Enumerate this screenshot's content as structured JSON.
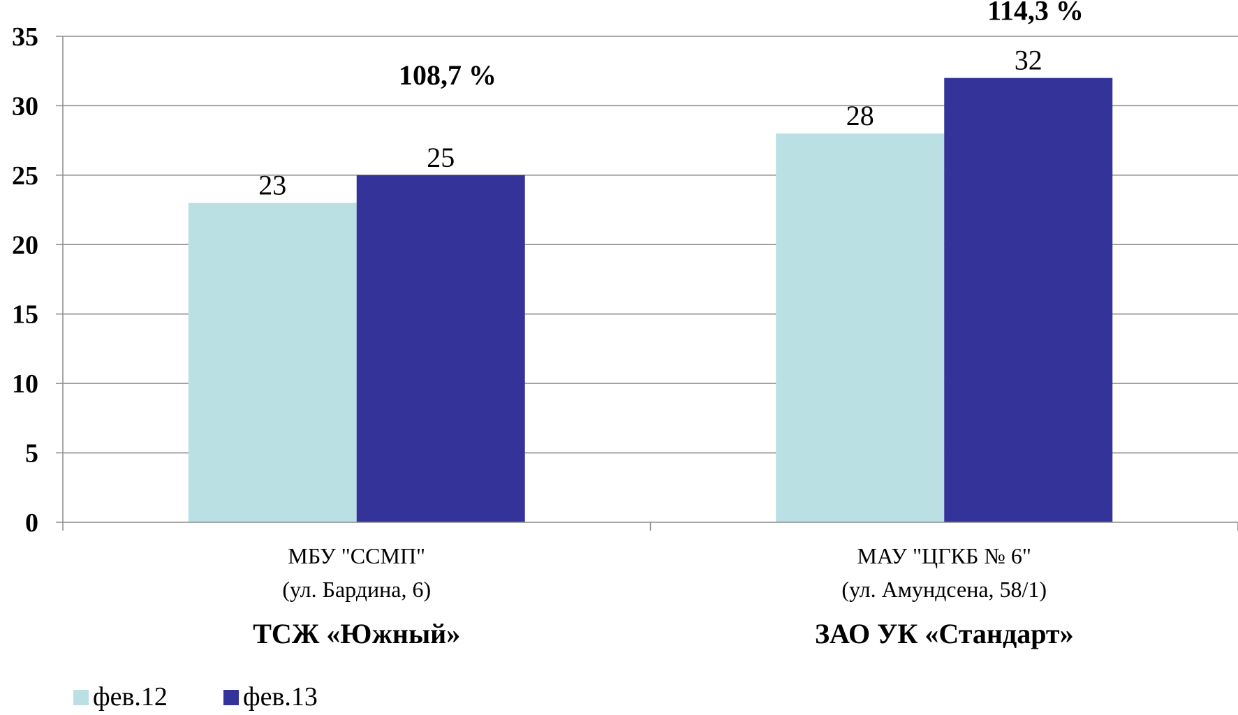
{
  "chart_data": {
    "type": "bar",
    "categories": [
      {
        "line1": "МБУ \"ССМП\"",
        "line2": "(ул. Бардина, 6)",
        "line3": "ТСЖ «Южный»",
        "annotation": "108,7 %"
      },
      {
        "line1": "МАУ \"ЦГКБ № 6\"",
        "line2": "(ул. Амундсена, 58/1)",
        "line3": "ЗАО УК «Стандарт»",
        "annotation": "114,3 %"
      }
    ],
    "series": [
      {
        "name": "фев.12",
        "values": [
          23,
          28
        ],
        "color": "#bbe0e3"
      },
      {
        "name": "фев.13",
        "values": [
          25,
          32
        ],
        "color": "#333399"
      }
    ],
    "yticks": [
      "0",
      "5",
      "10",
      "15",
      "20",
      "25",
      "30",
      "35"
    ],
    "ylim": [
      0,
      35
    ],
    "grid": true,
    "legend": "bottom-left"
  }
}
